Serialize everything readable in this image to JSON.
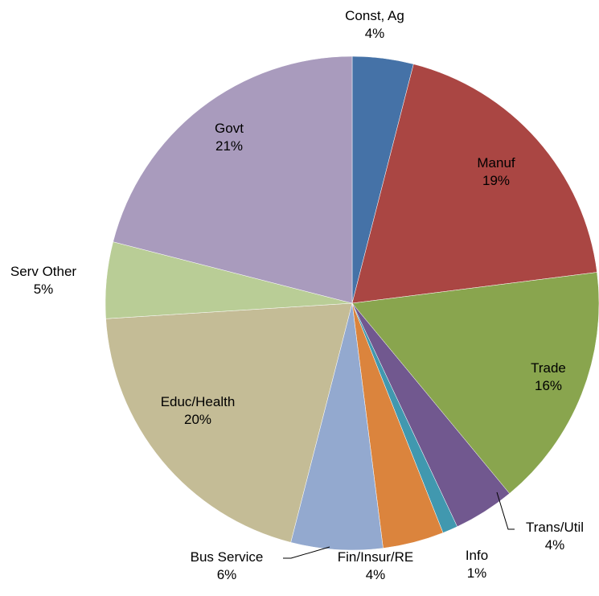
{
  "chart_data": {
    "type": "pie",
    "categories": [
      "Const, Ag",
      "Manuf",
      "Trade",
      "Trans/Util",
      "Info",
      "Fin/Insur/RE",
      "Bus Service",
      "Educ/Health",
      "Serv Other",
      "Govt"
    ],
    "values": [
      4,
      19,
      16,
      4,
      1,
      4,
      6,
      20,
      5,
      21
    ],
    "value_labels": [
      "4%",
      "19%",
      "16%",
      "4%",
      "1%",
      "4%",
      "6%",
      "20%",
      "5%",
      "21%"
    ],
    "colors": [
      "#4572a7",
      "#aa4643",
      "#89a54e",
      "#71588f",
      "#4198af",
      "#db843d",
      "#93a9cf",
      "#c4bc96",
      "#b9cd96",
      "#a99bbd"
    ]
  }
}
